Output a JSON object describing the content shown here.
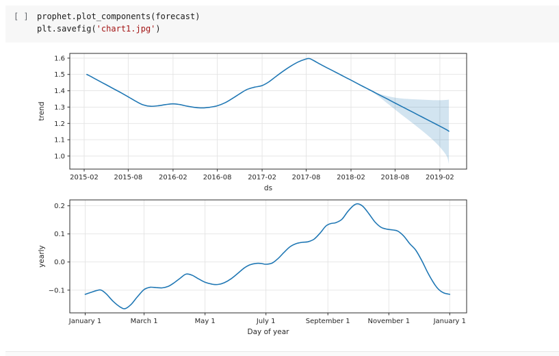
{
  "notebook": {
    "cell_prompt": "[ ]",
    "code": {
      "line1": "prophet.plot_components(forecast)",
      "line2_prefix": "plt.savefig(",
      "line2_string": "'chart1.jpg'",
      "line2_suffix": ")"
    }
  },
  "colors": {
    "line": "#1f77b4",
    "band": "#1f77b4",
    "band_opacity": 0.2,
    "grid": "#e3e3e3",
    "spine": "#2b2b2b",
    "tick_text": "#262626",
    "code_string": "#a31515",
    "cell_bg": "#f7f7f7"
  },
  "chart_data": [
    {
      "type": "line",
      "title": "",
      "xlabel": "ds",
      "ylabel": "trend",
      "grid": true,
      "legend": "none",
      "x_type": "date",
      "xlim": [
        "2014-12-04",
        "2019-05-22"
      ],
      "ylim": [
        0.92,
        1.629
      ],
      "x_tick_values": [
        "2015-02-01",
        "2015-08-01",
        "2016-02-01",
        "2016-08-01",
        "2017-02-01",
        "2017-08-01",
        "2018-02-01",
        "2018-08-01",
        "2019-02-01"
      ],
      "x_tick_labels": [
        "2015-02",
        "2015-08",
        "2016-02",
        "2016-08",
        "2017-02",
        "2017-08",
        "2018-02",
        "2018-08",
        "2019-02"
      ],
      "y_tick_values": [
        1.0,
        1.1,
        1.2,
        1.3,
        1.4,
        1.5,
        1.6
      ],
      "y_tick_labels": [
        "1.0",
        "1.1",
        "1.2",
        "1.3",
        "1.4",
        "1.5",
        "1.6"
      ],
      "points": [
        [
          "2015-02-12",
          1.5
        ],
        [
          "2015-03-01",
          1.487
        ],
        [
          "2015-04-01",
          1.462
        ],
        [
          "2015-05-01",
          1.438
        ],
        [
          "2015-06-01",
          1.413
        ],
        [
          "2015-07-01",
          1.389
        ],
        [
          "2015-08-01",
          1.363
        ],
        [
          "2015-09-01",
          1.336
        ],
        [
          "2015-10-01",
          1.314
        ],
        [
          "2015-11-01",
          1.305
        ],
        [
          "2015-12-01",
          1.308
        ],
        [
          "2016-01-01",
          1.315
        ],
        [
          "2016-02-01",
          1.32
        ],
        [
          "2016-03-01",
          1.315
        ],
        [
          "2016-04-01",
          1.305
        ],
        [
          "2016-05-01",
          1.298
        ],
        [
          "2016-06-01",
          1.295
        ],
        [
          "2016-07-01",
          1.299
        ],
        [
          "2016-08-01",
          1.308
        ],
        [
          "2016-09-01",
          1.326
        ],
        [
          "2016-10-01",
          1.352
        ],
        [
          "2016-11-01",
          1.382
        ],
        [
          "2016-12-01",
          1.408
        ],
        [
          "2017-01-01",
          1.422
        ],
        [
          "2017-02-01",
          1.432
        ],
        [
          "2017-03-01",
          1.455
        ],
        [
          "2017-04-01",
          1.49
        ],
        [
          "2017-05-01",
          1.523
        ],
        [
          "2017-06-01",
          1.553
        ],
        [
          "2017-07-01",
          1.578
        ],
        [
          "2017-08-01",
          1.595
        ],
        [
          "2017-08-15",
          1.597
        ],
        [
          "2017-09-01",
          1.585
        ],
        [
          "2017-10-01",
          1.56
        ],
        [
          "2017-11-01",
          1.536
        ],
        [
          "2017-12-01",
          1.513
        ],
        [
          "2018-01-01",
          1.489
        ],
        [
          "2018-02-01",
          1.465
        ],
        [
          "2018-03-01",
          1.443
        ],
        [
          "2018-04-01",
          1.419
        ],
        [
          "2018-05-01",
          1.396
        ],
        [
          "2018-06-01",
          1.372
        ],
        [
          "2018-07-01",
          1.349
        ],
        [
          "2018-08-01",
          1.325
        ],
        [
          "2018-09-01",
          1.301
        ],
        [
          "2018-10-01",
          1.278
        ],
        [
          "2018-11-01",
          1.254
        ],
        [
          "2018-12-01",
          1.231
        ],
        [
          "2019-01-01",
          1.207
        ],
        [
          "2019-02-01",
          1.183
        ],
        [
          "2019-03-01",
          1.161
        ],
        [
          "2019-03-10",
          1.152
        ]
      ],
      "band": {
        "dates": [
          "2018-04-25",
          "2018-06-01",
          "2018-07-01",
          "2018-08-01",
          "2018-09-01",
          "2018-10-01",
          "2018-11-01",
          "2018-12-01",
          "2019-01-01",
          "2019-02-01",
          "2019-03-01",
          "2019-03-10"
        ],
        "upper": [
          1.398,
          1.38,
          1.367,
          1.358,
          1.352,
          1.349,
          1.347,
          1.345,
          1.343,
          1.342,
          1.344,
          1.346
        ],
        "lower": [
          1.398,
          1.358,
          1.322,
          1.285,
          1.248,
          1.214,
          1.178,
          1.142,
          1.102,
          1.055,
          1.0,
          0.952
        ]
      }
    },
    {
      "type": "line",
      "title": "",
      "xlabel": "Day of year",
      "ylabel": "yearly",
      "grid": true,
      "legend": "none",
      "x_type": "linear",
      "xlim": [
        -15.4,
        381.9
      ],
      "ylim": [
        -0.181,
        0.221
      ],
      "x_tick_values": [
        0,
        59,
        120,
        181,
        243,
        304,
        365
      ],
      "x_tick_labels": [
        "January 1",
        "March 1",
        "May 1",
        "July 1",
        "September 1",
        "November 1",
        "January 1"
      ],
      "y_tick_values": [
        -0.1,
        0.0,
        0.1,
        0.2
      ],
      "y_tick_labels": [
        "−0.1",
        "0.0",
        "0.1",
        "0.2"
      ],
      "points": [
        [
          0,
          -0.115
        ],
        [
          6,
          -0.108
        ],
        [
          12,
          -0.101
        ],
        [
          16,
          -0.1
        ],
        [
          21,
          -0.113
        ],
        [
          28,
          -0.14
        ],
        [
          35,
          -0.16
        ],
        [
          40,
          -0.166
        ],
        [
          46,
          -0.151
        ],
        [
          52,
          -0.125
        ],
        [
          59,
          -0.098
        ],
        [
          65,
          -0.09
        ],
        [
          71,
          -0.091
        ],
        [
          77,
          -0.092
        ],
        [
          83,
          -0.087
        ],
        [
          89,
          -0.074
        ],
        [
          95,
          -0.058
        ],
        [
          101,
          -0.043
        ],
        [
          107,
          -0.047
        ],
        [
          113,
          -0.059
        ],
        [
          120,
          -0.072
        ],
        [
          127,
          -0.079
        ],
        [
          133,
          -0.08
        ],
        [
          139,
          -0.074
        ],
        [
          146,
          -0.06
        ],
        [
          153,
          -0.04
        ],
        [
          159,
          -0.022
        ],
        [
          165,
          -0.01
        ],
        [
          171,
          -0.005
        ],
        [
          176,
          -0.005
        ],
        [
          181,
          -0.008
        ],
        [
          187,
          -0.004
        ],
        [
          193,
          0.012
        ],
        [
          199,
          0.034
        ],
        [
          205,
          0.054
        ],
        [
          211,
          0.065
        ],
        [
          217,
          0.07
        ],
        [
          223,
          0.072
        ],
        [
          229,
          0.081
        ],
        [
          235,
          0.102
        ],
        [
          241,
          0.128
        ],
        [
          246,
          0.137
        ],
        [
          251,
          0.14
        ],
        [
          257,
          0.152
        ],
        [
          263,
          0.18
        ],
        [
          269,
          0.202
        ],
        [
          273,
          0.207
        ],
        [
          278,
          0.198
        ],
        [
          284,
          0.172
        ],
        [
          290,
          0.143
        ],
        [
          296,
          0.124
        ],
        [
          302,
          0.117
        ],
        [
          308,
          0.114
        ],
        [
          313,
          0.11
        ],
        [
          319,
          0.092
        ],
        [
          325,
          0.065
        ],
        [
          331,
          0.042
        ],
        [
          337,
          0.005
        ],
        [
          343,
          -0.038
        ],
        [
          349,
          -0.075
        ],
        [
          354,
          -0.098
        ],
        [
          359,
          -0.11
        ],
        [
          365,
          -0.115
        ]
      ]
    }
  ]
}
